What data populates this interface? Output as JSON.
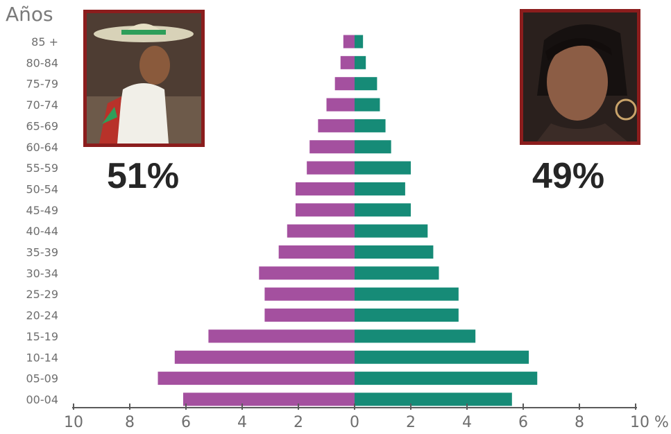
{
  "axis_title": "Años",
  "male_share": "51%",
  "female_share": "49%",
  "colors": {
    "male": "#a4509f",
    "female": "#168b77",
    "axis": "#5a5a5a",
    "labels": "#6e6e6e",
    "frame": "#8b1d1d"
  },
  "icons": {
    "male_photo": "man-portrait-photo",
    "female_photo": "woman-portrait-photo"
  },
  "chart_data": {
    "type": "bar",
    "orientation": "horizontal-pyramid",
    "categories": [
      "85 +",
      "80-84",
      "75-79",
      "70-74",
      "65-69",
      "60-64",
      "55-59",
      "50-54",
      "45-49",
      "40-44",
      "35-39",
      "30-34",
      "25-29",
      "20-24",
      "15-19",
      "10-14",
      "05-09",
      "00-04"
    ],
    "series": [
      {
        "values": [
          0.4,
          0.5,
          0.7,
          1.0,
          1.3,
          1.6,
          1.7,
          2.1,
          2.1,
          2.4,
          2.7,
          3.4,
          3.2,
          3.2,
          5.2,
          6.4,
          7.0,
          6.1
        ]
      },
      {
        "values": [
          0.3,
          0.4,
          0.8,
          0.9,
          1.1,
          1.3,
          2.0,
          1.8,
          2.0,
          2.6,
          2.8,
          3.0,
          3.7,
          3.7,
          4.3,
          6.2,
          6.5,
          5.6
        ]
      }
    ],
    "x_ticks": [
      "10",
      "8",
      "6",
      "4",
      "2",
      "0",
      "2",
      "4",
      "6",
      "8",
      "10 %"
    ],
    "xlim": [
      -10,
      10
    ]
  }
}
